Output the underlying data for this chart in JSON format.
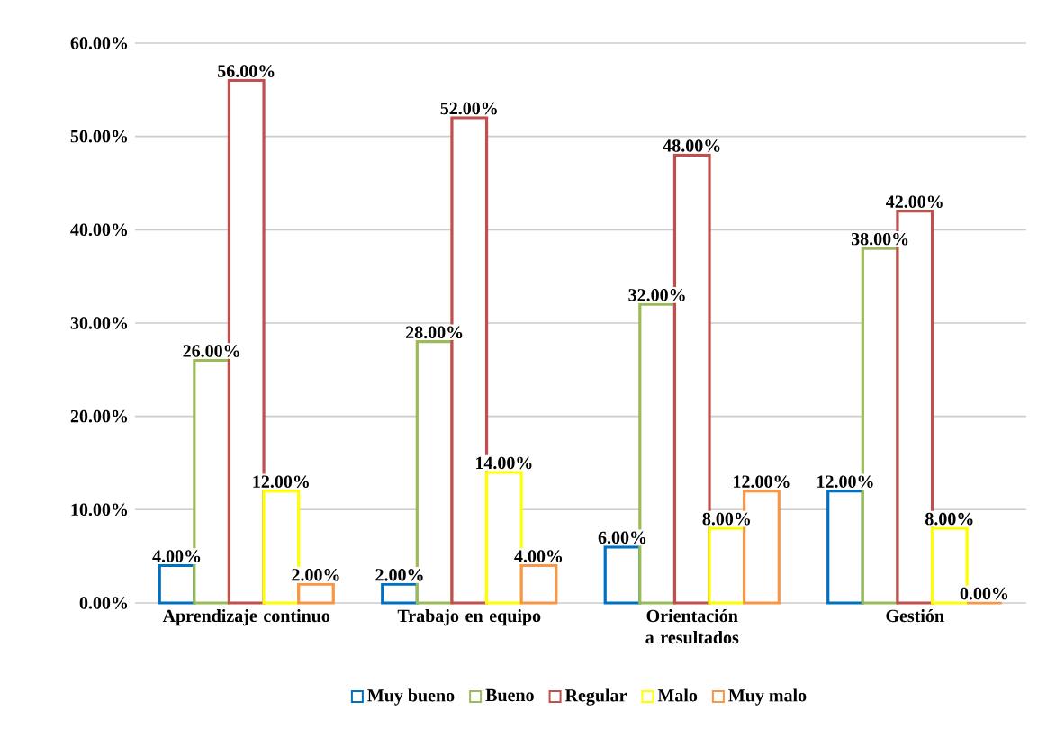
{
  "chart_data": {
    "type": "bar",
    "categories": [
      "Aprendizaje continuo",
      "Trabajo en equipo",
      "Orientación a resultados",
      "Gestión"
    ],
    "series": [
      {
        "name": "Muy bueno",
        "color": "#0070c0",
        "values": [
          4,
          2,
          6,
          12
        ],
        "value_labels": [
          "4.00%",
          "2.00%",
          "6.00%",
          "12.00%"
        ]
      },
      {
        "name": "Bueno",
        "color": "#9bbb59",
        "values": [
          26,
          28,
          32,
          38
        ],
        "value_labels": [
          "26.00%",
          "28.00%",
          "32.00%",
          "38.00%"
        ]
      },
      {
        "name": "Regular",
        "color": "#c0504d",
        "values": [
          56,
          52,
          48,
          42
        ],
        "value_labels": [
          "56.00%",
          "52.00%",
          "48.00%",
          "42.00%"
        ]
      },
      {
        "name": "Malo",
        "color": "#ffff00",
        "values": [
          12,
          14,
          8,
          8
        ],
        "value_labels": [
          "12.00%",
          "14.00%",
          "8.00%",
          "8.00%"
        ]
      },
      {
        "name": "Muy malo",
        "color": "#f79646",
        "values": [
          2,
          4,
          12,
          0
        ],
        "value_labels": [
          "2.00%",
          "4.00%",
          "12.00%",
          "0.00%"
        ]
      }
    ],
    "ylim": [
      0,
      60
    ],
    "yticks": [
      {
        "value": 0,
        "label": "0.00%"
      },
      {
        "value": 10,
        "label": "10.00%"
      },
      {
        "value": 20,
        "label": "20.00%"
      },
      {
        "value": 30,
        "label": "30.00%"
      },
      {
        "value": 40,
        "label": "40.00%"
      },
      {
        "value": 50,
        "label": "50.00%"
      },
      {
        "value": 60,
        "label": "60.00%"
      }
    ],
    "grid": "y",
    "legend": "bottom"
  }
}
